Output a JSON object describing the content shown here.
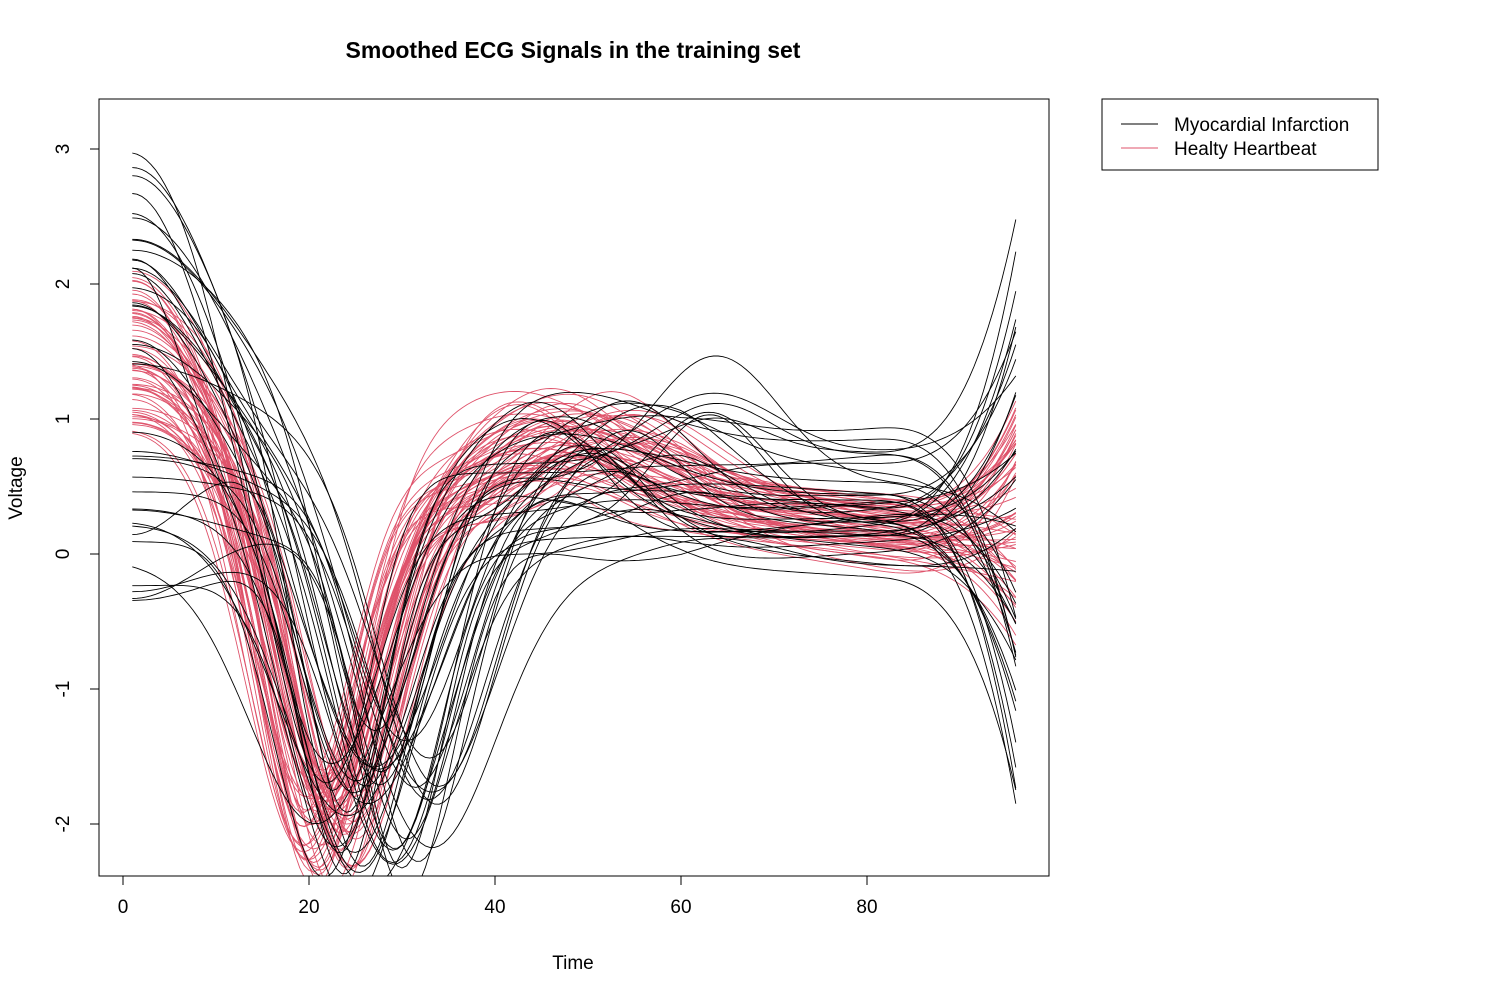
{
  "chart_data": {
    "type": "line",
    "title": "Smoothed ECG Signals in the training set",
    "xlabel": "Time",
    "ylabel": "Voltage",
    "xlim": [
      0,
      96
    ],
    "ylim": [
      -2.4,
      3.4
    ],
    "xticks": [
      0,
      20,
      40,
      60,
      80
    ],
    "xtick_labels": [
      "0",
      "20",
      "40",
      "60",
      "80"
    ],
    "yticks": [
      -2,
      -1,
      0,
      1,
      2,
      3
    ],
    "ytick_labels": [
      "-2",
      "-1",
      "0",
      "1",
      "2",
      "3"
    ],
    "grid": false,
    "legend_position": "outside-top-right",
    "legend": [
      {
        "name": "Myocardial Infarction",
        "color": "#000000"
      },
      {
        "name": "Healty Heartbeat",
        "color": "#DF536B"
      }
    ],
    "series": [
      {
        "name": "Myocardial Infarction",
        "color": "#000000",
        "count": 40,
        "representative": {
          "x": [
            1,
            5,
            10,
            15,
            20,
            25,
            30,
            35,
            40,
            45,
            50,
            55,
            60,
            65,
            70,
            75,
            80,
            85,
            90,
            96
          ],
          "y": [
            2.4,
            1.6,
            0.4,
            -0.8,
            -1.7,
            -1.8,
            -1.5,
            -1.0,
            -0.3,
            0.3,
            0.6,
            0.7,
            0.6,
            0.5,
            0.5,
            0.5,
            0.5,
            0.5,
            0.6,
            0.5
          ]
        }
      },
      {
        "name": "Healty Heartbeat",
        "color": "#DF536B",
        "count": 60,
        "representative": {
          "x": [
            1,
            5,
            10,
            15,
            20,
            25,
            30,
            35,
            40,
            45,
            50,
            55,
            60,
            65,
            70,
            75,
            80,
            85,
            90,
            96
          ],
          "y": [
            1.5,
            1.4,
            0.6,
            -0.7,
            -1.6,
            -1.8,
            -1.4,
            -0.5,
            0.3,
            0.6,
            0.7,
            0.7,
            0.6,
            0.5,
            0.4,
            0.3,
            0.2,
            0.1,
            0.0,
            0.0
          ]
        }
      }
    ]
  }
}
